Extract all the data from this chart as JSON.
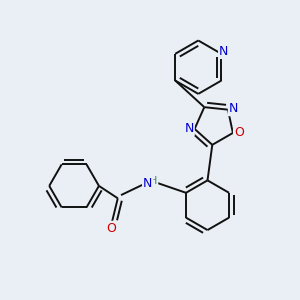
{
  "background_color": "#eaeff5",
  "atom_colors": {
    "C": "#000000",
    "N": "#0000cc",
    "O": "#cc0000",
    "H": "#4a8c6f"
  },
  "bond_color": "#111111",
  "bond_width": 1.4,
  "font_size_atoms": 8.5,
  "xlim": [
    -2.5,
    3.0
  ],
  "ylim": [
    -3.2,
    3.2
  ]
}
